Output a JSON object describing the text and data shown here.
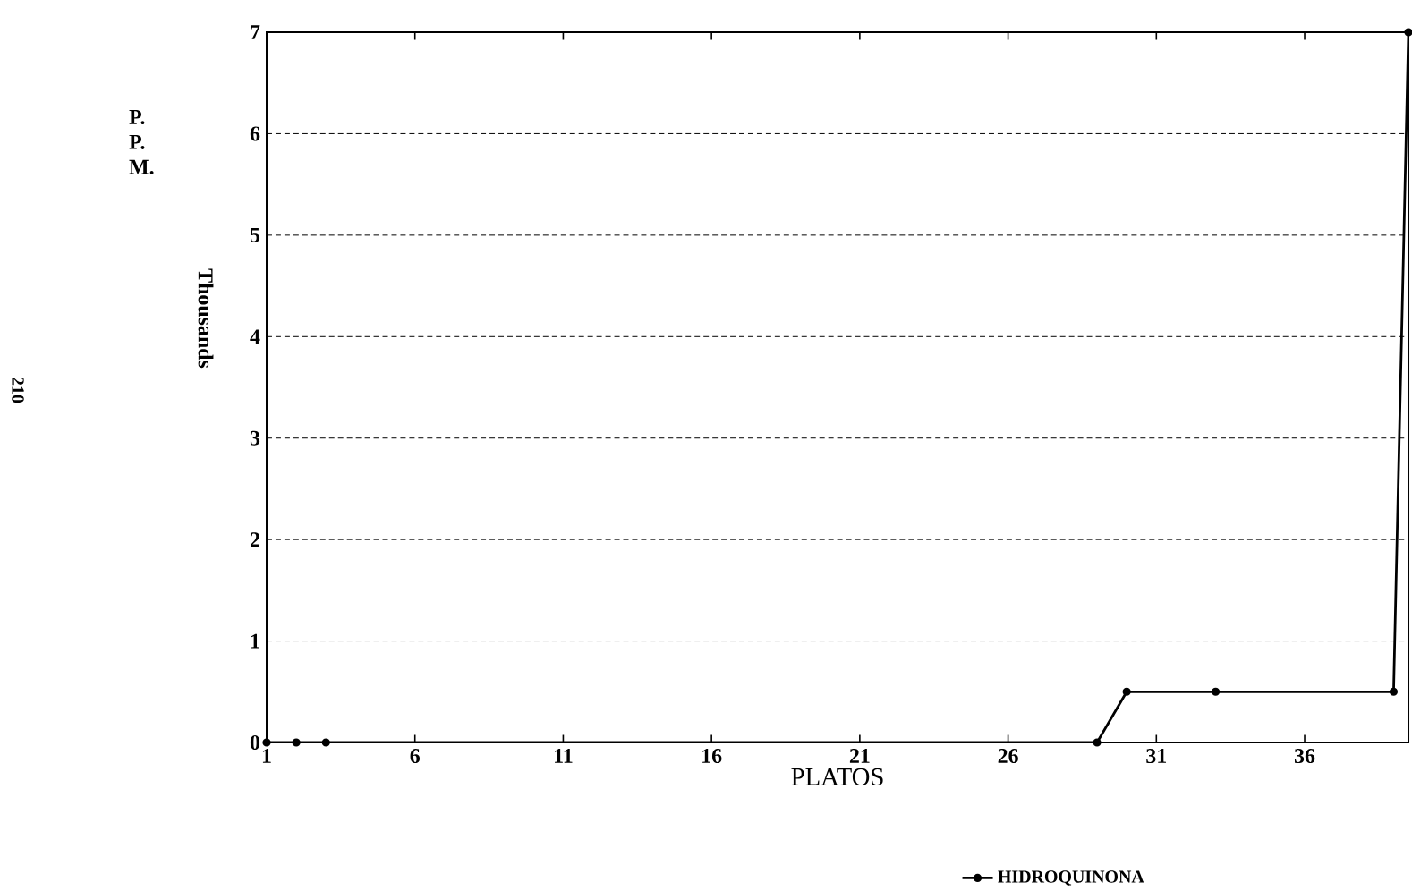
{
  "chart_data": {
    "type": "line",
    "xlabel": "PLATOS",
    "ylabel": "P. P. M.",
    "annotations": [
      "Thousands",
      "210"
    ],
    "x": [
      1,
      2,
      3,
      29,
      30,
      33,
      39,
      39.5
    ],
    "series": [
      {
        "name": "HIDROQUINONA",
        "color": "#000000",
        "values": [
          0,
          0,
          0,
          0,
          0.5,
          0.5,
          0.5,
          7
        ]
      }
    ],
    "xlim": [
      1,
      39.5
    ],
    "xticks": [
      1,
      6,
      11,
      16,
      21,
      26,
      31,
      36
    ],
    "ylim": [
      0,
      7
    ],
    "yticks": [
      0,
      1,
      2,
      3,
      4,
      5,
      6,
      7
    ],
    "grid": "y",
    "legend": "bottom",
    "marker": "circle",
    "line_style": "solid"
  }
}
